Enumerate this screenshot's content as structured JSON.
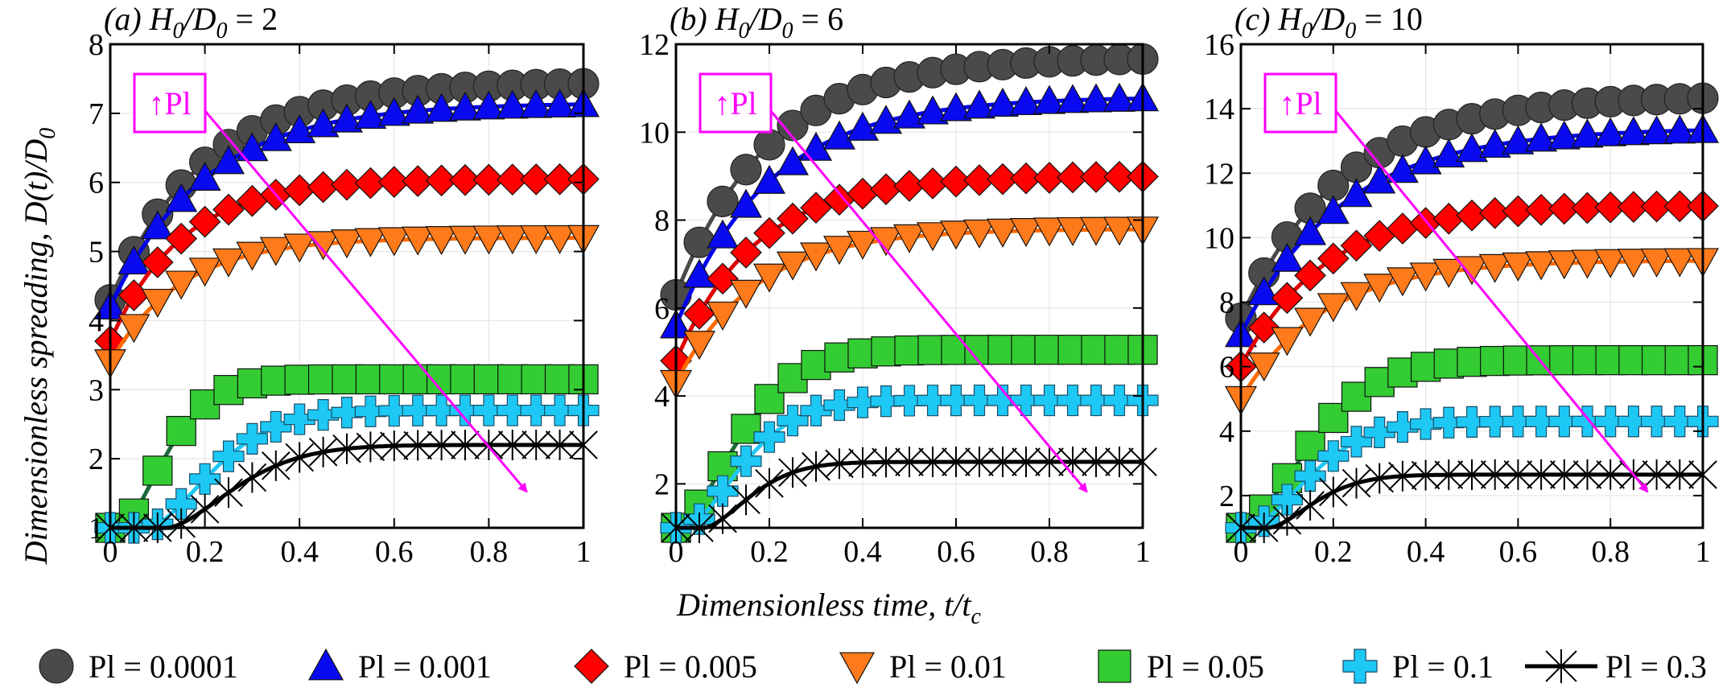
{
  "figure": {
    "ylabel": "Dimensionless spreading, D(t)/D",
    "ylabel_sub": "0",
    "xlabel": "Dimensionless time, t/t",
    "xlabel_sub": "c"
  },
  "colors": {
    "grid": "#e6e6e6",
    "arrow": "#ff00ff",
    "annotation": "#ff00ff"
  },
  "annotation": {
    "arrow_glyph": "↑",
    "text": "Pl"
  },
  "legend": [
    {
      "label": "Pl = 0.0001",
      "marker": "circle",
      "fill": "#4a4a4a",
      "line": "#4a4a4a"
    },
    {
      "label": "Pl = 0.001",
      "marker": "triangle-up",
      "fill": "#0a0af0",
      "line": "#0000ee"
    },
    {
      "label": "Pl = 0.005",
      "marker": "diamond",
      "fill": "#ff0000",
      "line": "#e00000"
    },
    {
      "label": "Pl = 0.01",
      "marker": "triangle-down",
      "fill": "#ff7a1a",
      "line": "#ff6a00"
    },
    {
      "label": "Pl = 0.05",
      "marker": "square",
      "fill": "#33cc33",
      "line": "#1a6b3a"
    },
    {
      "label": "Pl = 0.1",
      "marker": "plus",
      "fill": "#1ec8f5",
      "line": "#1ec8f5"
    },
    {
      "label": "Pl = 0.3",
      "marker": "asterisk",
      "fill": "#000000",
      "line": "#000000"
    }
  ],
  "chart_data": [
    {
      "type": "line",
      "panel": "(a)",
      "title_prefix": "(a) H",
      "title_sub1": "0",
      "title_mid": "/D",
      "title_sub2": "0",
      "title_value": " = 2",
      "xlim": [
        0,
        1
      ],
      "ylim": [
        1,
        8
      ],
      "xticks": [
        "0",
        "0.2",
        "0.4",
        "0.6",
        "0.8",
        "1"
      ],
      "yticks": [
        "1",
        "2",
        "3",
        "4",
        "5",
        "6",
        "7",
        "8"
      ],
      "series": [
        {
          "name": "Pl = 0.0001",
          "final": 7.45,
          "tau": 0.2,
          "start": 4.3,
          "delay": 0
        },
        {
          "name": "Pl = 0.001",
          "final": 7.15,
          "tau": 0.2,
          "start": 4.2,
          "delay": 0
        },
        {
          "name": "Pl = 0.005",
          "final": 6.05,
          "tau": 0.15,
          "start": 3.7,
          "delay": 0
        },
        {
          "name": "Pl = 0.01",
          "final": 5.2,
          "tau": 0.15,
          "start": 3.4,
          "delay": 0
        },
        {
          "name": "Pl = 0.05",
          "final": 3.15,
          "tau": 0.12,
          "start": 1.0,
          "delay": 0.02
        },
        {
          "name": "Pl = 0.1",
          "final": 2.7,
          "tau": 0.18,
          "start": 1.0,
          "delay": 0.08
        },
        {
          "name": "Pl = 0.3",
          "final": 2.2,
          "tau": 0.2,
          "start": 1.0,
          "delay": 0.12
        }
      ]
    },
    {
      "type": "line",
      "panel": "(b)",
      "title_prefix": "(b) H",
      "title_sub1": "0",
      "title_mid": "/D",
      "title_sub2": "0",
      "title_value": " = 6",
      "xlim": [
        0,
        1
      ],
      "ylim": [
        1,
        12
      ],
      "xticks": [
        "0",
        "0.2",
        "0.4",
        "0.6",
        "0.8",
        "1"
      ],
      "yticks": [
        "2",
        "4",
        "6",
        "8",
        "10",
        "12"
      ],
      "series": [
        {
          "name": "Pl = 0.0001",
          "final": 11.7,
          "tau": 0.2,
          "start": 6.3,
          "delay": 0
        },
        {
          "name": "Pl = 0.001",
          "final": 10.8,
          "tau": 0.2,
          "start": 5.6,
          "delay": 0
        },
        {
          "name": "Pl = 0.005",
          "final": 9.0,
          "tau": 0.17,
          "start": 4.8,
          "delay": 0
        },
        {
          "name": "Pl = 0.01",
          "final": 7.8,
          "tau": 0.17,
          "start": 4.3,
          "delay": 0
        },
        {
          "name": "Pl = 0.05",
          "final": 5.05,
          "tau": 0.16,
          "start": 1.0,
          "delay": 0.0
        },
        {
          "name": "Pl = 0.1",
          "final": 3.9,
          "tau": 0.15,
          "start": 1.0,
          "delay": 0.02
        },
        {
          "name": "Pl = 0.3",
          "final": 2.5,
          "tau": 0.13,
          "start": 1.0,
          "delay": 0.06
        }
      ]
    },
    {
      "type": "line",
      "panel": "(c)",
      "title_prefix": "(c) H",
      "title_sub1": "0",
      "title_mid": "/D",
      "title_sub2": "0",
      "title_value": " = 10",
      "xlim": [
        0,
        1
      ],
      "ylim": [
        1,
        16
      ],
      "xticks": [
        "0",
        "0.2",
        "0.4",
        "0.6",
        "0.8",
        "1"
      ],
      "yticks": [
        "2",
        "4",
        "6",
        "8",
        "10",
        "12",
        "14",
        "16"
      ],
      "series": [
        {
          "name": "Pl = 0.0001",
          "final": 14.4,
          "tau": 0.22,
          "start": 7.5,
          "delay": 0
        },
        {
          "name": "Pl = 0.001",
          "final": 13.4,
          "tau": 0.22,
          "start": 7.0,
          "delay": 0
        },
        {
          "name": "Pl = 0.005",
          "final": 11.0,
          "tau": 0.18,
          "start": 6.0,
          "delay": 0
        },
        {
          "name": "Pl = 0.01",
          "final": 9.3,
          "tau": 0.18,
          "start": 5.0,
          "delay": 0
        },
        {
          "name": "Pl = 0.05",
          "final": 6.2,
          "tau": 0.18,
          "start": 1.0,
          "delay": 0.0
        },
        {
          "name": "Pl = 0.1",
          "final": 4.3,
          "tau": 0.16,
          "start": 1.0,
          "delay": 0.02
        },
        {
          "name": "Pl = 0.3",
          "final": 2.65,
          "tau": 0.13,
          "start": 1.0,
          "delay": 0.06
        }
      ]
    }
  ]
}
